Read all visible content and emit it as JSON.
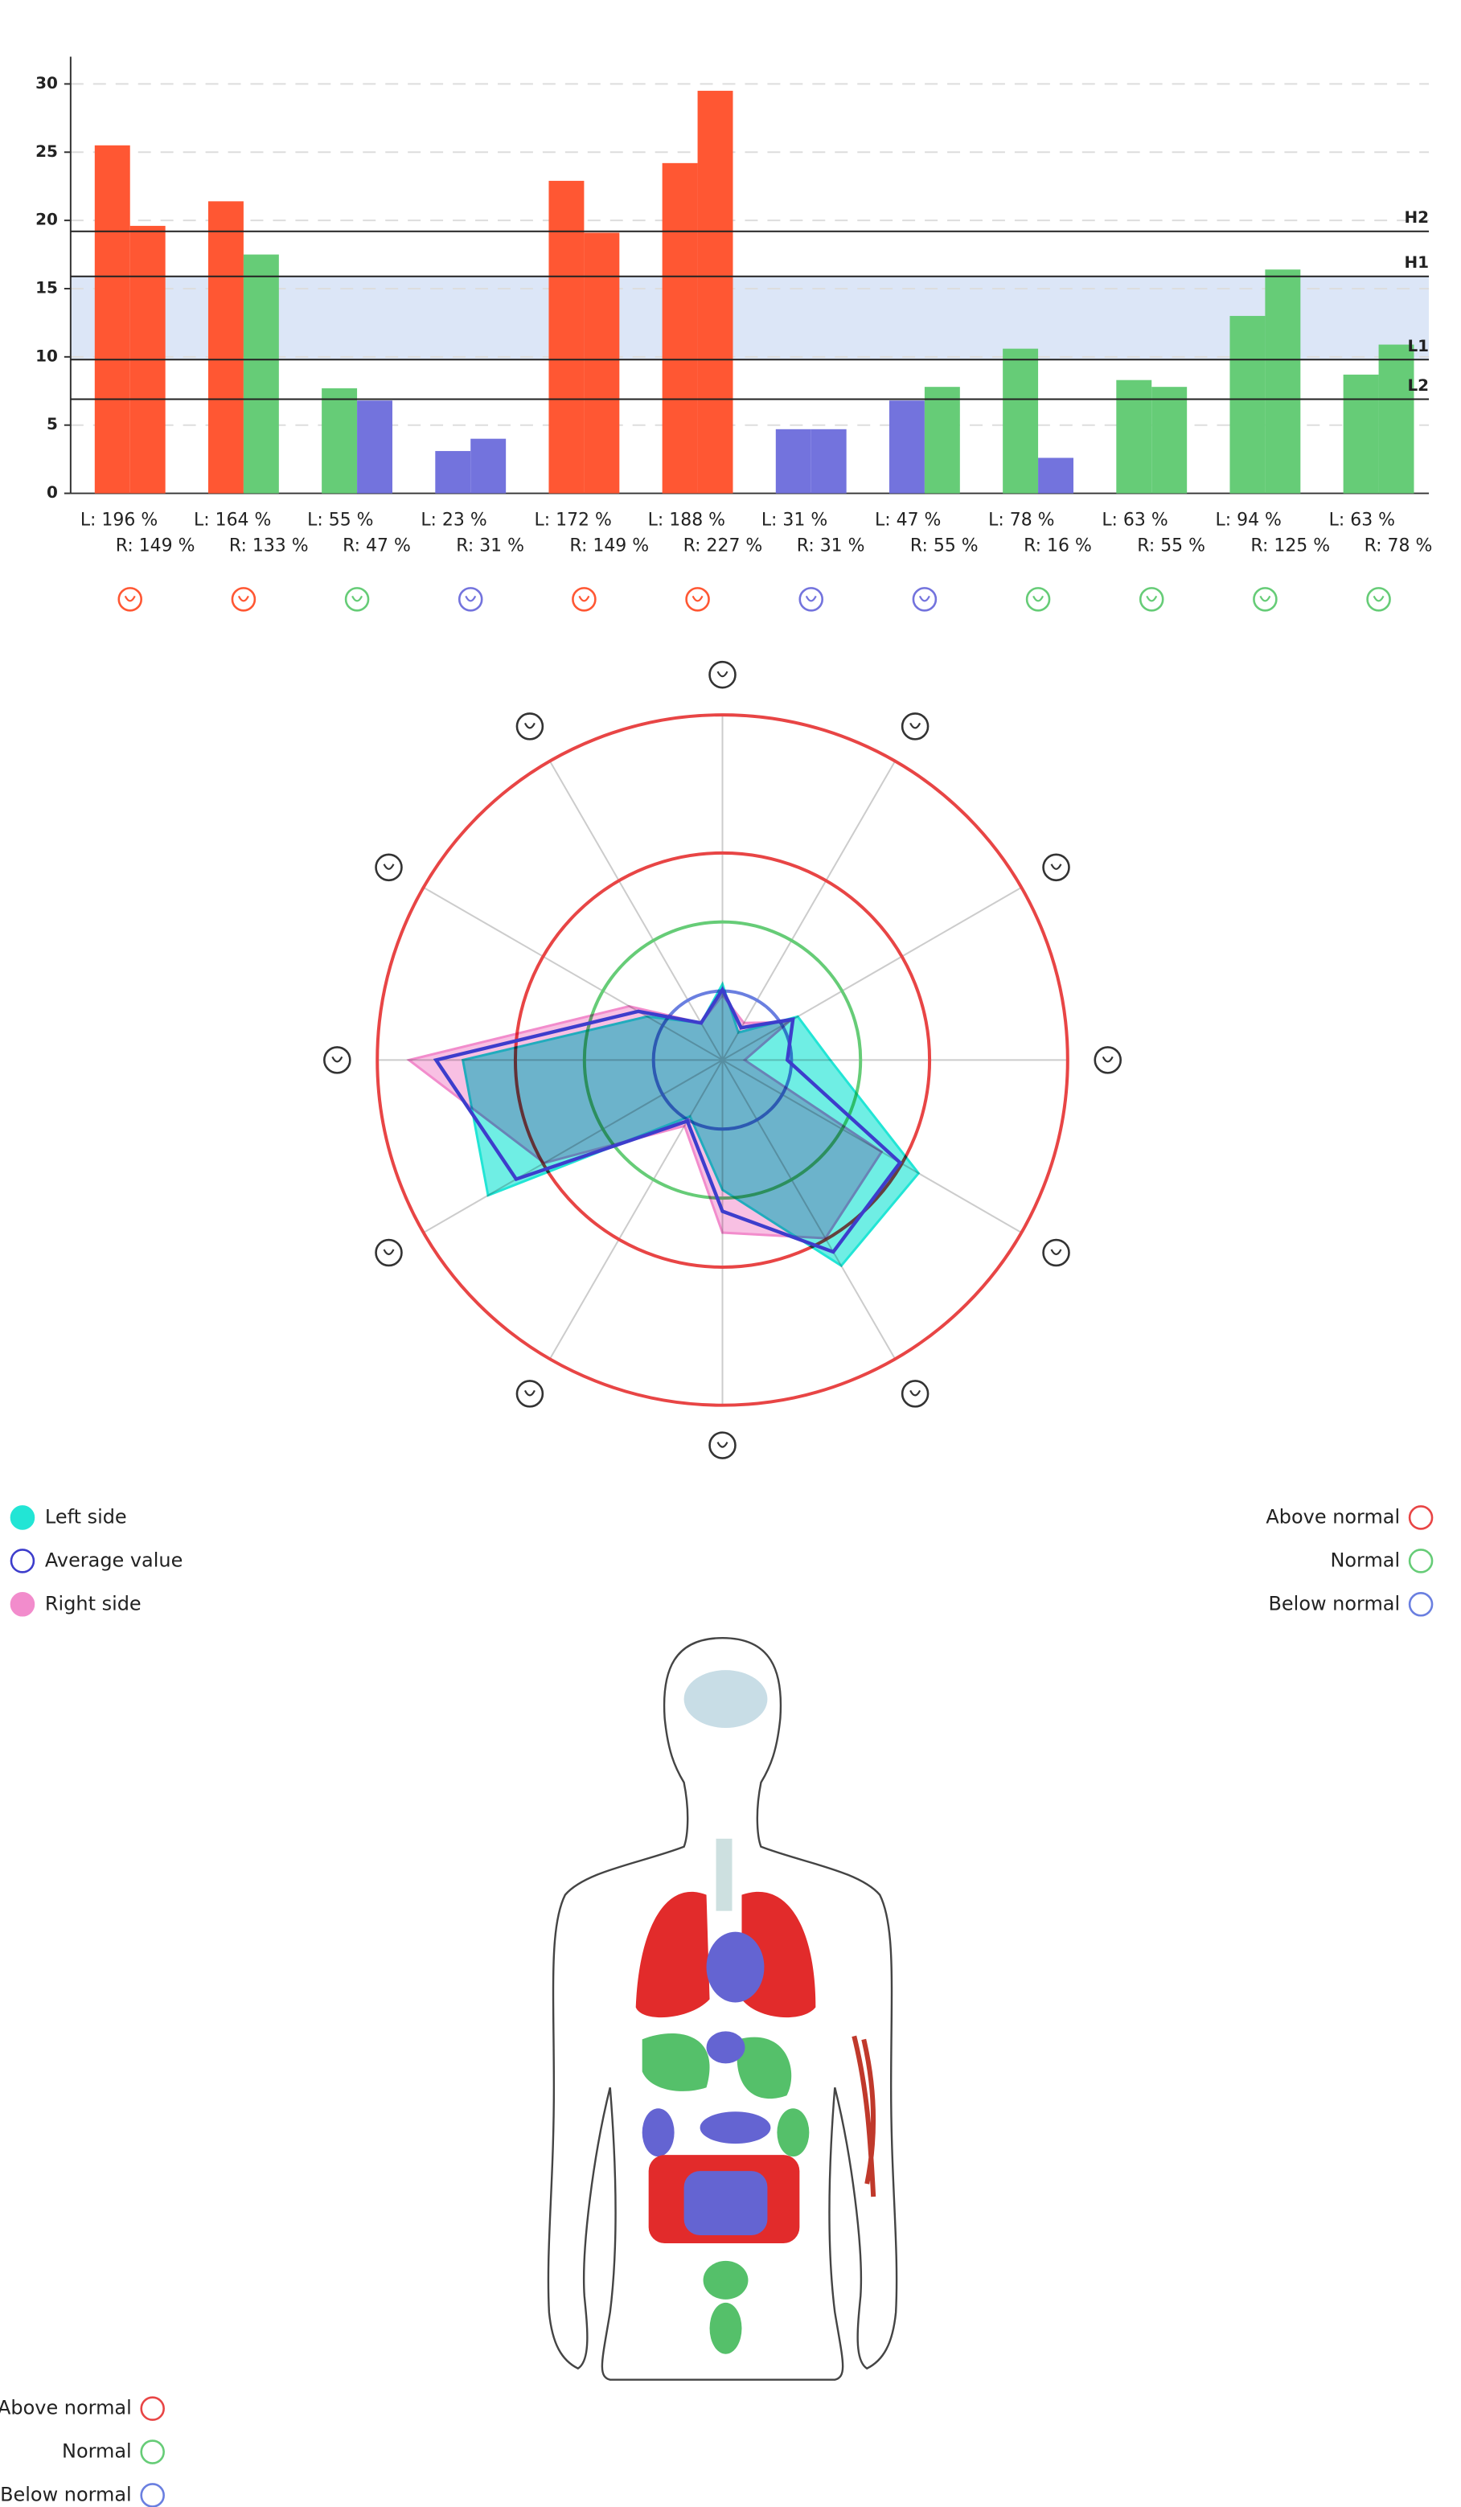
{
  "chart_data": [
    {
      "type": "bar",
      "ylim": [
        0,
        32
      ],
      "yticks": [
        0,
        5,
        10,
        15,
        20,
        25,
        30
      ],
      "grid": true,
      "series": [
        {
          "colors": [
            "#ff5733",
            "#ff5733",
            "#66cc77",
            "#7373dd",
            "#ff5733",
            "#ff5733",
            "#7373dd",
            "#7373dd",
            "#66cc77",
            "#66cc77",
            "#66cc77",
            "#66cc77"
          ],
          "values": [
            25.5,
            21.4,
            7.7,
            3.1,
            22.9,
            24.2,
            4.7,
            6.8,
            10.6,
            8.3,
            13.0,
            8.7
          ],
          "labels": [
            "L: 196 %",
            "L: 164 %",
            "L: 55 %",
            "L: 23 %",
            "L: 172 %",
            "L: 188 %",
            "L: 31 %",
            "L: 47 %",
            "L: 78 %",
            "L: 63 %",
            "L: 94 %",
            "L: 63 %"
          ]
        },
        {
          "colors": [
            "#ff5733",
            "#66cc77",
            "#7373dd",
            "#7373dd",
            "#ff5733",
            "#ff5733",
            "#7373dd",
            "#66cc77",
            "#7373dd",
            "#66cc77",
            "#66cc77",
            "#66cc77"
          ],
          "values": [
            19.6,
            17.5,
            6.8,
            4.0,
            19.1,
            29.5,
            4.7,
            7.8,
            2.6,
            7.8,
            16.4,
            10.9
          ],
          "labels": [
            "R: 149 %",
            "R: 133 %",
            "R: 47 %",
            "R: 31 %",
            "R: 149 %",
            "R: 227 %",
            "R: 31 %",
            "R: 55 %",
            "R: 16 %",
            "R: 55 %",
            "R: 125 %",
            "R: 78 %"
          ]
        }
      ],
      "reference_lines": [
        {
          "label": "H2",
          "value": 19.2
        },
        {
          "label": "H1",
          "value": 15.9
        },
        {
          "label": "L1",
          "value": 9.8
        },
        {
          "label": "L2",
          "value": 6.9
        }
      ],
      "band_color": "#dce6f7"
    },
    {
      "type": "radar",
      "rlim": [
        0,
        250
      ],
      "rings": [
        {
          "value": 50,
          "color": "#6a7fe0"
        },
        {
          "value": 100,
          "color": "#66cc77"
        },
        {
          "value": 150,
          "color": "#e84545"
        },
        {
          "value": 250,
          "color": "#e84545"
        }
      ],
      "series": [
        {
          "name": "Left side",
          "color": "#22e5d5",
          "values": [
            55,
            23,
            63,
            78,
            164,
            172,
            94,
            47,
            196,
            188,
            63,
            31
          ]
        },
        {
          "name": "Average value",
          "color": "#3d3dcc",
          "values": [
            51,
            27,
            59,
            47,
            148.5,
            160.5,
            109.5,
            51,
            172.5,
            207.5,
            70.5,
            31
          ]
        },
        {
          "name": "Right side",
          "color": "#f28ccc",
          "values": [
            47,
            31,
            55,
            16,
            133,
            149,
            125,
            55,
            149,
            227,
            78,
            31
          ]
        }
      ],
      "legend": [
        {
          "name": "Above normal",
          "color": "#e84545"
        },
        {
          "name": "Normal",
          "color": "#66cc77"
        },
        {
          "name": "Below normal",
          "color": "#6a7fe0"
        }
      ]
    }
  ],
  "body_legend": [
    {
      "name": "Above normal",
      "color": "#e84545"
    },
    {
      "name": "Normal",
      "color": "#66cc77"
    },
    {
      "name": "Below normal",
      "color": "#6a7fe0"
    }
  ]
}
